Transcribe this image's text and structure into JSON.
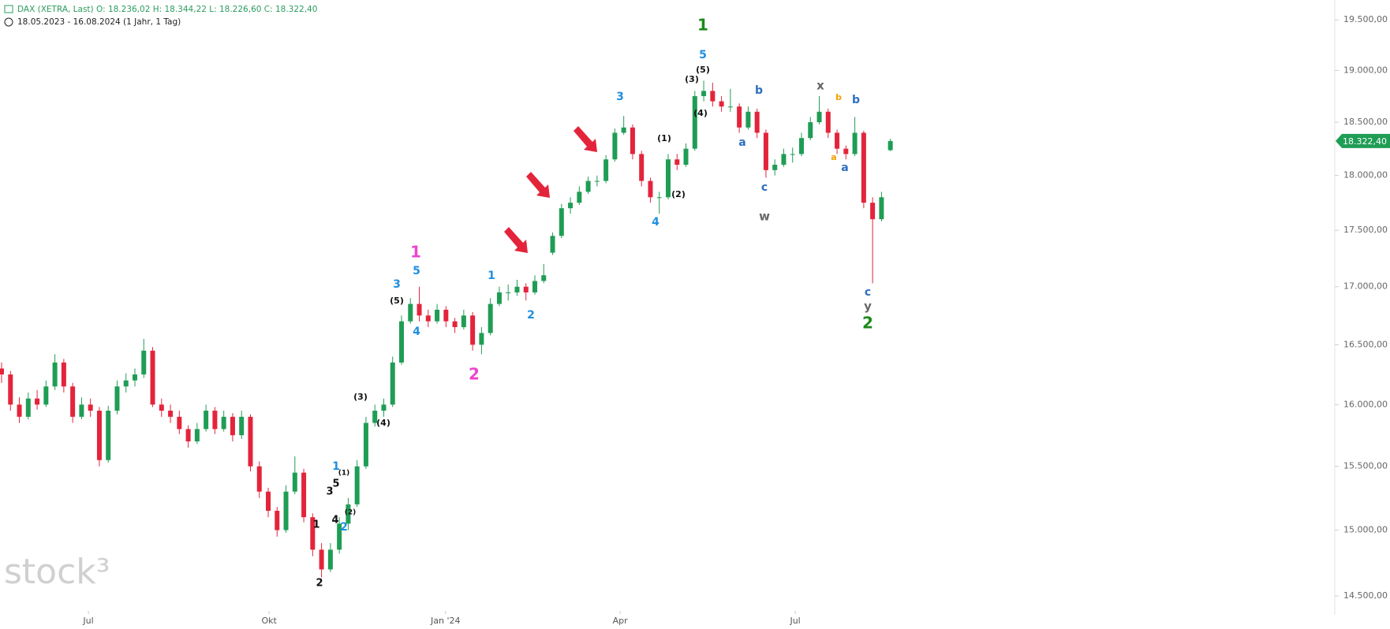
{
  "chart_data": {
    "type": "candlestick",
    "header": "DAX (XETRA, Last)  O: 18.236,02  H: 18.344,22  L: 18.226,60  C: 18.322,40",
    "subheader": "18.05.2023 - 16.08.2024   (1 Jahr, 1 Tag)",
    "watermark": "stock³",
    "log_scale": true,
    "grid": false,
    "up_color": "#1f9d55",
    "down_color": "#e3243b",
    "xlim": [
      0,
      150
    ],
    "ylim": [
      14390,
      19700
    ],
    "xticks": [
      {
        "value": 9.77,
        "label": "Jul"
      },
      {
        "value": 30.1,
        "label": "Okt"
      },
      {
        "value": 49.95,
        "label": "Jan '24"
      },
      {
        "value": 69.6,
        "label": "Apr"
      },
      {
        "value": 89.3,
        "label": "Jul"
      }
    ],
    "yticks": [
      {
        "value": 19500,
        "label": "19.500,00"
      },
      {
        "value": 19000,
        "label": "19.000,00"
      },
      {
        "value": 18500,
        "label": "18.500,00"
      },
      {
        "value": 18000,
        "label": "18.000,00"
      },
      {
        "value": 17500,
        "label": "17.500,00"
      },
      {
        "value": 17000,
        "label": "17.000,00"
      },
      {
        "value": 16500,
        "label": "16.500,00"
      },
      {
        "value": 16000,
        "label": "16.000,00"
      },
      {
        "value": 15500,
        "label": "15.500,00"
      },
      {
        "value": 15000,
        "label": "15.000,00"
      },
      {
        "value": 14500,
        "label": "14.500,00"
      }
    ],
    "last_price": {
      "value": 18322.4,
      "label": "18.322,40"
    },
    "candles": [
      [
        16300,
        16350,
        16180,
        16250
      ],
      [
        16250,
        16280,
        15950,
        16000
      ],
      [
        16000,
        16060,
        15850,
        15900
      ],
      [
        15900,
        16100,
        15880,
        16050
      ],
      [
        16050,
        16120,
        15960,
        16000
      ],
      [
        16000,
        16200,
        15980,
        16150
      ],
      [
        16150,
        16420,
        16120,
        16350
      ],
      [
        16350,
        16380,
        16100,
        16150
      ],
      [
        16150,
        16180,
        15850,
        15900
      ],
      [
        15900,
        16060,
        15880,
        16000
      ],
      [
        16000,
        16050,
        15900,
        15950
      ],
      [
        15950,
        15980,
        15500,
        15550
      ],
      [
        15550,
        15990,
        15530,
        15950
      ],
      [
        15950,
        16200,
        15920,
        16150
      ],
      [
        16150,
        16260,
        16100,
        16200
      ],
      [
        16200,
        16300,
        16150,
        16250
      ],
      [
        16250,
        16550,
        16220,
        16450
      ],
      [
        16450,
        16480,
        15980,
        16000
      ],
      [
        16000,
        16050,
        15900,
        15950
      ],
      [
        15950,
        16000,
        15850,
        15900
      ],
      [
        15900,
        15950,
        15760,
        15800
      ],
      [
        15800,
        15830,
        15650,
        15700
      ],
      [
        15700,
        15850,
        15680,
        15800
      ],
      [
        15800,
        16000,
        15780,
        15950
      ],
      [
        15950,
        15980,
        15760,
        15800
      ],
      [
        15800,
        15950,
        15780,
        15900
      ],
      [
        15900,
        15930,
        15700,
        15750
      ],
      [
        15750,
        15950,
        15720,
        15900
      ],
      [
        15900,
        15920,
        15460,
        15500
      ],
      [
        15500,
        15540,
        15250,
        15300
      ],
      [
        15300,
        15330,
        15100,
        15150
      ],
      [
        15150,
        15180,
        14950,
        15000
      ],
      [
        15000,
        15350,
        14980,
        15300
      ],
      [
        15300,
        15580,
        15280,
        15450
      ],
      [
        15450,
        15480,
        15060,
        15100
      ],
      [
        15100,
        15130,
        14800,
        14850
      ],
      [
        14850,
        14900,
        14640,
        14700
      ],
      [
        14700,
        14900,
        14680,
        14850
      ],
      [
        14850,
        15100,
        14820,
        15050
      ],
      [
        15050,
        15250,
        15000,
        15200
      ],
      [
        15200,
        15550,
        15180,
        15500
      ],
      [
        15500,
        15900,
        15480,
        15850
      ],
      [
        15850,
        16000,
        15820,
        15950
      ],
      [
        15950,
        16050,
        15900,
        16000
      ],
      [
        16000,
        16400,
        15980,
        16350
      ],
      [
        16350,
        16750,
        16330,
        16700
      ],
      [
        16700,
        16900,
        16680,
        16850
      ],
      [
        16850,
        17000,
        16700,
        16750
      ],
      [
        16750,
        16800,
        16650,
        16700
      ],
      [
        16700,
        16850,
        16680,
        16800
      ],
      [
        16800,
        16830,
        16650,
        16700
      ],
      [
        16700,
        16730,
        16600,
        16650
      ],
      [
        16650,
        16800,
        16630,
        16750
      ],
      [
        16750,
        16780,
        16450,
        16500
      ],
      [
        16500,
        16650,
        16420,
        16600
      ],
      [
        16600,
        16900,
        16580,
        16850
      ],
      [
        16850,
        17000,
        16830,
        16950
      ],
      [
        16950,
        17020,
        16880,
        16950
      ],
      [
        16950,
        17060,
        16920,
        17000
      ],
      [
        17000,
        17030,
        16880,
        16950
      ],
      [
        16950,
        17100,
        16930,
        17050
      ],
      [
        17050,
        17200,
        17030,
        17100
      ],
      [
        17300,
        17480,
        17280,
        17450
      ],
      [
        17450,
        17740,
        17430,
        17700
      ],
      [
        17700,
        17800,
        17650,
        17750
      ],
      [
        17750,
        17900,
        17730,
        17850
      ],
      [
        17850,
        17990,
        17830,
        17950
      ],
      [
        17950,
        18000,
        17900,
        17950
      ],
      [
        17950,
        18190,
        17930,
        18150
      ],
      [
        18150,
        18440,
        18130,
        18400
      ],
      [
        18400,
        18560,
        18380,
        18450
      ],
      [
        18450,
        18480,
        18150,
        18200
      ],
      [
        18200,
        18230,
        17900,
        17950
      ],
      [
        17950,
        17980,
        17750,
        17800
      ],
      [
        17800,
        17850,
        17650,
        17800
      ],
      [
        17800,
        18200,
        17780,
        18150
      ],
      [
        18150,
        18200,
        18050,
        18100
      ],
      [
        18100,
        18300,
        18080,
        18250
      ],
      [
        18250,
        18800,
        18230,
        18750
      ],
      [
        18750,
        18900,
        18700,
        18800
      ],
      [
        18800,
        18880,
        18650,
        18700
      ],
      [
        18700,
        18750,
        18600,
        18650
      ],
      [
        18650,
        18820,
        18600,
        18650
      ],
      [
        18650,
        18680,
        18400,
        18450
      ],
      [
        18450,
        18650,
        18430,
        18600
      ],
      [
        18600,
        18630,
        18350,
        18400
      ],
      [
        18400,
        18430,
        17980,
        18050
      ],
      [
        18050,
        18150,
        18000,
        18100
      ],
      [
        18100,
        18250,
        18080,
        18200
      ],
      [
        18200,
        18260,
        18120,
        18200
      ],
      [
        18200,
        18400,
        18180,
        18350
      ],
      [
        18350,
        18550,
        18330,
        18500
      ],
      [
        18500,
        18750,
        18480,
        18600
      ],
      [
        18600,
        18630,
        18350,
        18400
      ],
      [
        18400,
        18430,
        18200,
        18250
      ],
      [
        18250,
        18280,
        18150,
        18200
      ],
      [
        18200,
        18550,
        18180,
        18400
      ],
      [
        18400,
        18420,
        17700,
        17750
      ],
      [
        17750,
        17800,
        17030,
        17600
      ],
      [
        17600,
        17850,
        17580,
        17800
      ],
      [
        18236.02,
        18344.22,
        18226.6,
        18322.4
      ]
    ],
    "annotations": [
      "1",
      "5",
      "(5)",
      "(3)",
      "(4)",
      "b",
      "a",
      "c",
      "w",
      "x",
      "b",
      "b",
      "a",
      "a",
      "c",
      "y",
      "2",
      "3",
      "(1)",
      "(2)",
      "4",
      "1",
      "5",
      "3",
      "(5)",
      "4",
      "2",
      "1",
      "2",
      "(3)",
      "(4)",
      "1",
      "(1)",
      "5",
      "3",
      "4",
      "(2)",
      "2",
      "1",
      "2"
    ]
  }
}
